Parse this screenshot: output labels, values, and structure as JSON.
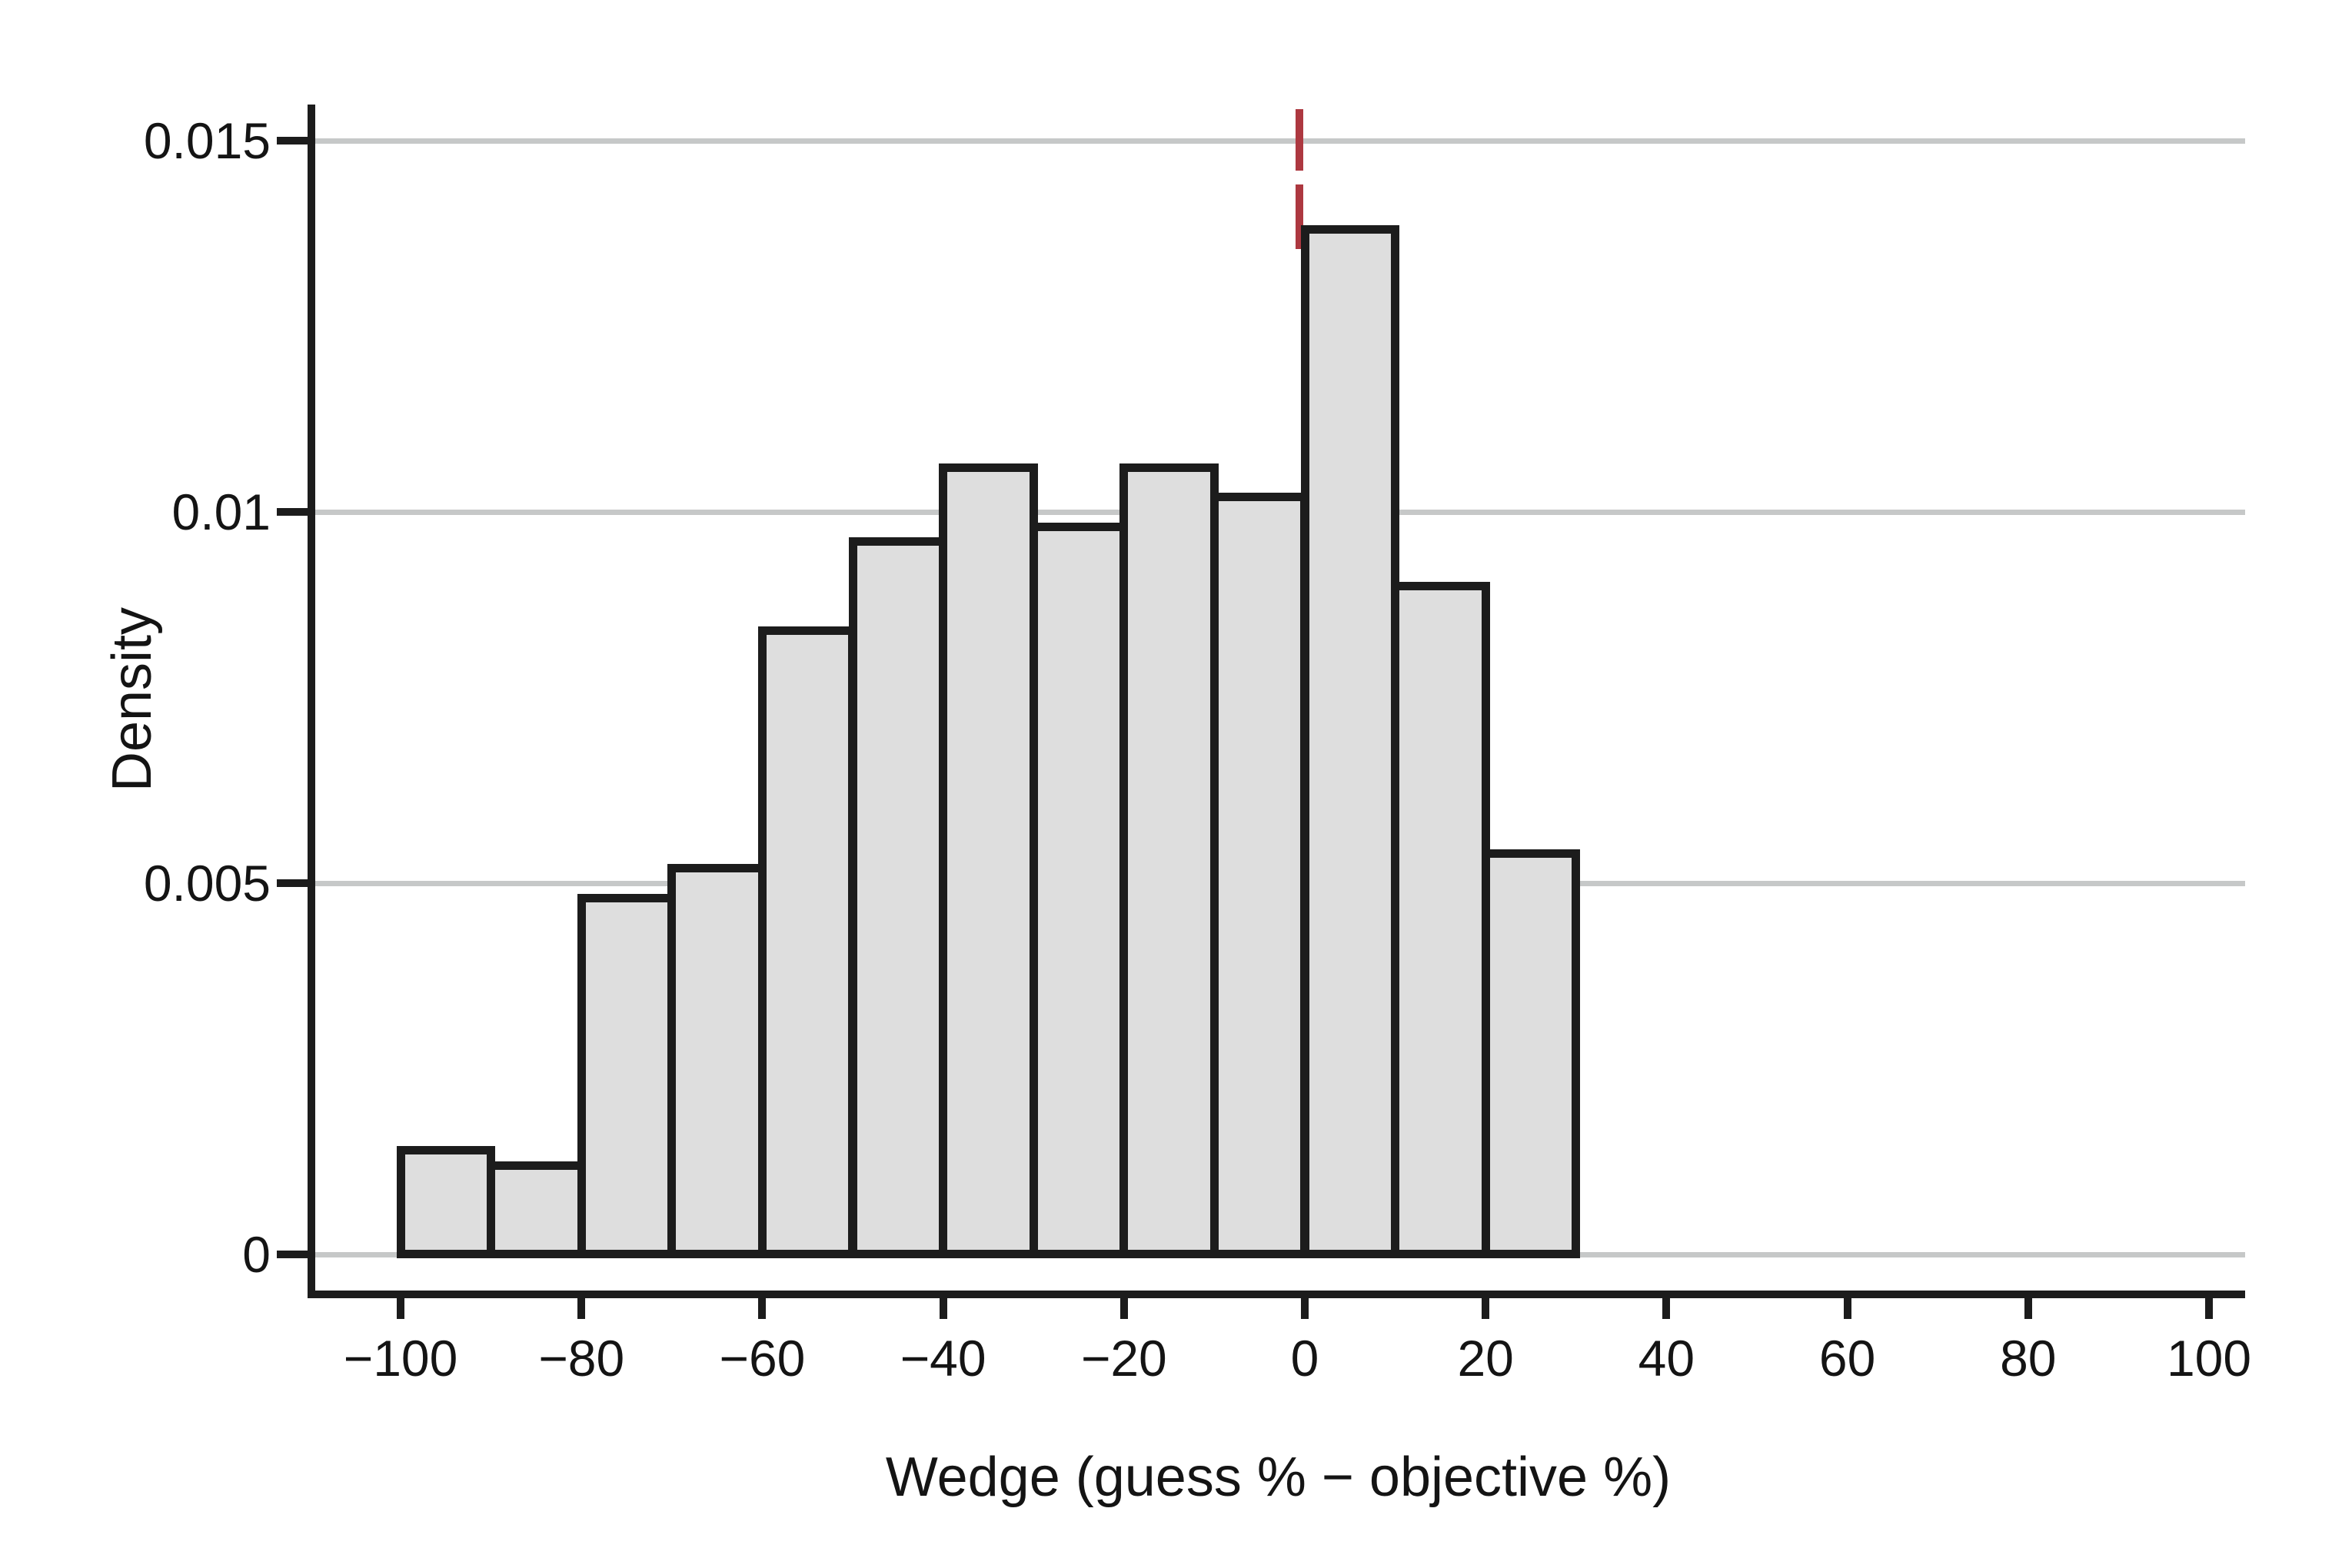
{
  "style": {
    "background": "#ffffff",
    "text_color": "#141414",
    "grid_color": "#c6c8c8",
    "axis_color": "#1c1c1c",
    "bar_fill": "#dedede",
    "bar_border": "#1c1c1c",
    "refline_color": "#ad3840"
  },
  "chart_data": {
    "type": "bar",
    "variant": "histogram",
    "title": "",
    "xlabel": "Wedge (guess % − objective %)",
    "ylabel": "Density",
    "grid": "horizontal",
    "legend": "none",
    "xlim": [
      -110,
      104
    ],
    "ylim": [
      0,
      0.0155
    ],
    "bin_width": 10,
    "bins": [
      {
        "start": -100,
        "end": -90,
        "density": 0.0014
      },
      {
        "start": -90,
        "end": -80,
        "density": 0.0012
      },
      {
        "start": -80,
        "end": -70,
        "density": 0.0048
      },
      {
        "start": -70,
        "end": -60,
        "density": 0.0052
      },
      {
        "start": -60,
        "end": -50,
        "density": 0.0084
      },
      {
        "start": -50,
        "end": -40,
        "density": 0.0096
      },
      {
        "start": -40,
        "end": -30,
        "density": 0.0106
      },
      {
        "start": -30,
        "end": -20,
        "density": 0.0098
      },
      {
        "start": -20,
        "end": -10,
        "density": 0.0106
      },
      {
        "start": -10,
        "end": 0,
        "density": 0.0102
      },
      {
        "start": 0,
        "end": 10,
        "density": 0.0138
      },
      {
        "start": 10,
        "end": 20,
        "density": 0.009
      },
      {
        "start": 20,
        "end": 30,
        "density": 0.0054
      }
    ],
    "x_ticks": [
      {
        "value": -100,
        "label": "−100"
      },
      {
        "value": -80,
        "label": "−80"
      },
      {
        "value": -60,
        "label": "−60"
      },
      {
        "value": -40,
        "label": "−40"
      },
      {
        "value": -20,
        "label": "−20"
      },
      {
        "value": 0,
        "label": "0"
      },
      {
        "value": 20,
        "label": "20"
      },
      {
        "value": 40,
        "label": "40"
      },
      {
        "value": 60,
        "label": "60"
      },
      {
        "value": 80,
        "label": "80"
      },
      {
        "value": 100,
        "label": "100"
      }
    ],
    "y_ticks": [
      {
        "value": 0,
        "label": "0"
      },
      {
        "value": 0.005,
        "label": "0.005"
      },
      {
        "value": 0.01,
        "label": "0.01"
      },
      {
        "value": 0.015,
        "label": "0.015"
      }
    ],
    "ref_line": {
      "x": 0,
      "style": "dashed",
      "orientation": "vertical"
    }
  }
}
